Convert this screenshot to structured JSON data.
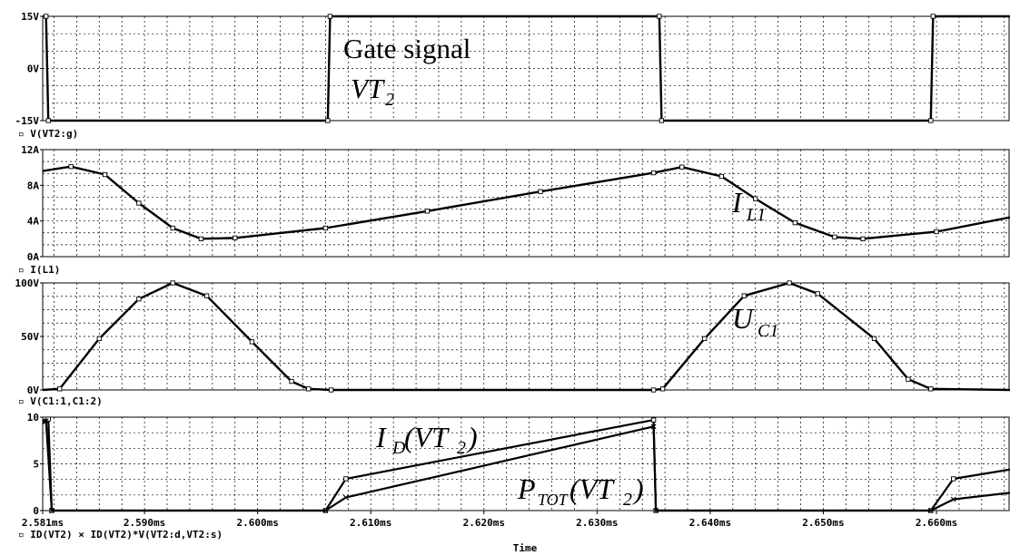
{
  "chart_data": [
    {
      "type": "line",
      "id": "gate",
      "ylim": [
        -15,
        15
      ],
      "yticks": [
        {
          "v": 15,
          "label": "15V"
        },
        {
          "v": 0,
          "label": "0V"
        },
        {
          "v": -15,
          "label": "-15V"
        }
      ],
      "trace_label": "V(VT2:g)",
      "series": [
        {
          "name": "V(VT2:g)",
          "points": [
            [
              2.581,
              15
            ],
            [
              2.5813,
              15
            ],
            [
              2.5815,
              -15
            ],
            [
              2.6062,
              -15
            ],
            [
              2.6064,
              15
            ],
            [
              2.6355,
              15
            ],
            [
              2.6357,
              -15
            ],
            [
              2.6595,
              -15
            ],
            [
              2.6597,
              15
            ],
            [
              2.6665,
              15
            ]
          ]
        }
      ],
      "annotations": [
        "Gate signal",
        "VT",
        "2"
      ]
    },
    {
      "type": "line",
      "id": "il1",
      "ylim": [
        0,
        12
      ],
      "yticks": [
        {
          "v": 12,
          "label": "12A"
        },
        {
          "v": 8,
          "label": "8A"
        },
        {
          "v": 4,
          "label": "4A"
        },
        {
          "v": 0,
          "label": "0A"
        }
      ],
      "trace_label": "I(L1)",
      "series": [
        {
          "name": "I(L1)",
          "points": [
            [
              2.581,
              9.6
            ],
            [
              2.5835,
              10.1
            ],
            [
              2.5865,
              9.2
            ],
            [
              2.5895,
              6.0
            ],
            [
              2.5925,
              3.2
            ],
            [
              2.595,
              2.0
            ],
            [
              2.598,
              2.1
            ],
            [
              2.606,
              3.2
            ],
            [
              2.615,
              5.1
            ],
            [
              2.625,
              7.3
            ],
            [
              2.635,
              9.4
            ],
            [
              2.6375,
              10.05
            ],
            [
              2.641,
              9.0
            ],
            [
              2.644,
              6.5
            ],
            [
              2.6475,
              3.8
            ],
            [
              2.651,
              2.2
            ],
            [
              2.6535,
              2.0
            ],
            [
              2.66,
              2.8
            ],
            [
              2.6665,
              4.4
            ]
          ]
        }
      ],
      "annotations": [
        "I",
        "L1"
      ]
    },
    {
      "type": "line",
      "id": "uc1",
      "ylim": [
        0,
        100
      ],
      "yticks": [
        {
          "v": 100,
          "label": "100V"
        },
        {
          "v": 50,
          "label": "50V"
        },
        {
          "v": 0,
          "label": "0V"
        }
      ],
      "trace_label": "V(C1:1,C1:2)",
      "series": [
        {
          "name": "V(C1:1,C1:2)",
          "points": [
            [
              2.581,
              0
            ],
            [
              2.5825,
              1
            ],
            [
              2.586,
              48
            ],
            [
              2.5895,
              85
            ],
            [
              2.5925,
              100
            ],
            [
              2.5955,
              88
            ],
            [
              2.5995,
              45
            ],
            [
              2.603,
              8
            ],
            [
              2.6045,
              1
            ],
            [
              2.6065,
              0
            ],
            [
              2.635,
              0
            ],
            [
              2.6358,
              1
            ],
            [
              2.6395,
              48
            ],
            [
              2.643,
              88
            ],
            [
              2.647,
              100
            ],
            [
              2.6495,
              90
            ],
            [
              2.6545,
              48
            ],
            [
              2.6575,
              10
            ],
            [
              2.6595,
              1
            ],
            [
              2.6665,
              0
            ]
          ]
        }
      ],
      "annotations": [
        "U",
        "C1"
      ]
    },
    {
      "type": "line",
      "id": "vt2",
      "ylim": [
        0,
        10
      ],
      "yticks": [
        {
          "v": 10,
          "label": "10"
        },
        {
          "v": 5,
          "label": "5"
        },
        {
          "v": 0,
          "label": "0"
        }
      ],
      "xticks": [
        {
          "v": 2.581,
          "label": "2.581ms"
        },
        {
          "v": 2.59,
          "label": "2.590ms"
        },
        {
          "v": 2.6,
          "label": "2.600ms"
        },
        {
          "v": 2.61,
          "label": "2.610ms"
        },
        {
          "v": 2.62,
          "label": "2.620ms"
        },
        {
          "v": 2.63,
          "label": "2.630ms"
        },
        {
          "v": 2.64,
          "label": "2.640ms"
        },
        {
          "v": 2.65,
          "label": "2.650ms"
        },
        {
          "v": 2.66,
          "label": "2.660ms"
        }
      ],
      "xlabel": "Time",
      "trace_label": "ID(VT2)  × ID(VT2)*V(VT2:d,VT2:s)",
      "series": [
        {
          "name": "ID(VT2)",
          "points": [
            [
              2.581,
              9.6
            ],
            [
              2.5815,
              9.8
            ],
            [
              2.5818,
              0
            ],
            [
              2.606,
              0
            ],
            [
              2.6078,
              3.4
            ],
            [
              2.635,
              9.7
            ],
            [
              2.6352,
              0
            ],
            [
              2.6595,
              0
            ],
            [
              2.6615,
              3.4
            ],
            [
              2.6665,
              4.4
            ]
          ]
        },
        {
          "name": "ID(VT2)*V(VT2:d,VT2:s)",
          "points": [
            [
              2.581,
              9.3
            ],
            [
              2.5813,
              9.6
            ],
            [
              2.5818,
              0
            ],
            [
              2.606,
              0
            ],
            [
              2.6078,
              1.4
            ],
            [
              2.635,
              9.0
            ],
            [
              2.6352,
              0
            ],
            [
              2.6595,
              0
            ],
            [
              2.6615,
              1.2
            ],
            [
              2.6665,
              1.9
            ]
          ]
        }
      ],
      "annotations": [
        "I",
        "D",
        "(VT",
        "2",
        ")",
        "P",
        "TOT",
        "(VT",
        "2",
        ")"
      ]
    }
  ]
}
